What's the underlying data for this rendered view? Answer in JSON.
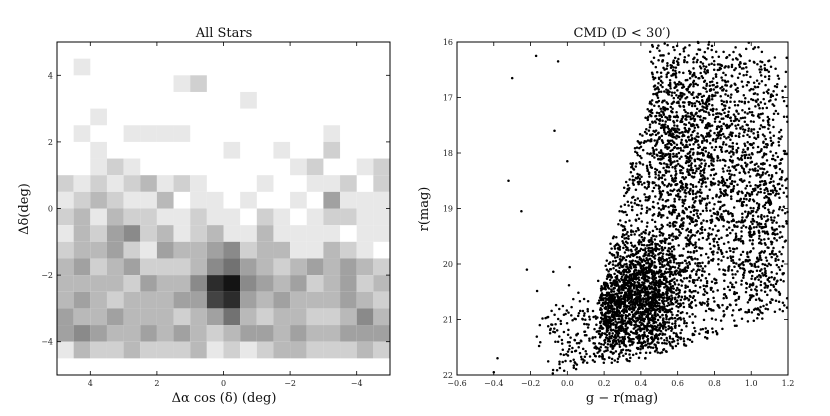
{
  "chart_data": [
    {
      "type": "heatmap",
      "title": "All Stars",
      "xlabel": "Δα cos (δ) (deg)",
      "ylabel": "Δδ(deg)",
      "xlim": [
        5,
        -5
      ],
      "ylim": [
        -5,
        5
      ],
      "x_reversed": true,
      "x_ticks": [
        "4",
        "2",
        "0",
        "−2",
        "−4"
      ],
      "x_tick_values": [
        4,
        2,
        0,
        -2,
        -4
      ],
      "y_ticks": [
        "4",
        "2",
        "0",
        "−2",
        "−4"
      ],
      "y_tick_values": [
        4,
        2,
        0,
        -2,
        -4
      ],
      "bin_size_deg": 0.5,
      "x_bin_start": 5,
      "y_bin_top": 5,
      "density_rows_top_to_bottom": [
        [
          0,
          0,
          0,
          0,
          0,
          0,
          0,
          0,
          0,
          0,
          0,
          0,
          0,
          0,
          0,
          0,
          0,
          0,
          0,
          0
        ],
        [
          0,
          1,
          0,
          0,
          0,
          0,
          0,
          0,
          0,
          0,
          0,
          0,
          0,
          0,
          0,
          0,
          0,
          0,
          0,
          0
        ],
        [
          0,
          0,
          0,
          0,
          0,
          0,
          0,
          1,
          2,
          0,
          0,
          0,
          0,
          0,
          0,
          0,
          0,
          0,
          0,
          0
        ],
        [
          0,
          0,
          0,
          0,
          0,
          0,
          0,
          0,
          0,
          0,
          0,
          1,
          0,
          0,
          0,
          0,
          0,
          0,
          0,
          0
        ],
        [
          0,
          0,
          1,
          0,
          0,
          0,
          0,
          0,
          0,
          0,
          0,
          0,
          0,
          0,
          0,
          0,
          0,
          0,
          0,
          0
        ],
        [
          0,
          1,
          0,
          0,
          1,
          1,
          1,
          1,
          0,
          0,
          0,
          0,
          0,
          0,
          0,
          0,
          1,
          0,
          0,
          0
        ],
        [
          0,
          0,
          1,
          0,
          0,
          0,
          0,
          0,
          0,
          0,
          1,
          0,
          0,
          1,
          0,
          0,
          2,
          0,
          0,
          0
        ],
        [
          0,
          0,
          1,
          2,
          1,
          0,
          0,
          0,
          0,
          0,
          0,
          0,
          0,
          0,
          1,
          2,
          0,
          0,
          1,
          2
        ],
        [
          2,
          1,
          2,
          1,
          2,
          3,
          1,
          2,
          1,
          0,
          0,
          0,
          1,
          0,
          0,
          1,
          1,
          2,
          0,
          2
        ],
        [
          1,
          2,
          3,
          2,
          1,
          1,
          3,
          0,
          1,
          1,
          0,
          1,
          0,
          0,
          1,
          0,
          4,
          1,
          1,
          1
        ],
        [
          2,
          3,
          1,
          3,
          2,
          2,
          1,
          1,
          2,
          1,
          1,
          0,
          2,
          1,
          0,
          1,
          2,
          2,
          1,
          1
        ],
        [
          1,
          3,
          2,
          4,
          5,
          2,
          3,
          1,
          2,
          3,
          1,
          1,
          3,
          1,
          1,
          1,
          1,
          0,
          1,
          1
        ],
        [
          2,
          3,
          3,
          4,
          2,
          1,
          4,
          3,
          3,
          4,
          5,
          2,
          3,
          3,
          1,
          1,
          3,
          2,
          1,
          0
        ],
        [
          3,
          4,
          2,
          3,
          4,
          2,
          2,
          2,
          3,
          5,
          6,
          4,
          3,
          2,
          3,
          4,
          3,
          4,
          3,
          2
        ],
        [
          3,
          3,
          3,
          3,
          2,
          4,
          3,
          3,
          5,
          9,
          10,
          5,
          4,
          3,
          4,
          2,
          3,
          4,
          2,
          3
        ],
        [
          3,
          4,
          3,
          2,
          3,
          3,
          3,
          4,
          4,
          8,
          9,
          4,
          3,
          4,
          3,
          3,
          3,
          4,
          3,
          2
        ],
        [
          4,
          3,
          3,
          4,
          3,
          3,
          3,
          2,
          3,
          4,
          6,
          3,
          2,
          3,
          3,
          2,
          2,
          3,
          5,
          3
        ],
        [
          4,
          5,
          4,
          3,
          3,
          4,
          3,
          4,
          3,
          2,
          3,
          4,
          4,
          3,
          4,
          3,
          3,
          4,
          4,
          4
        ],
        [
          1,
          3,
          2,
          2,
          3,
          2,
          2,
          2,
          3,
          1,
          2,
          1,
          2,
          3,
          3,
          2,
          2,
          2,
          3,
          2
        ]
      ],
      "density_max": 10,
      "grid": false
    },
    {
      "type": "scatter",
      "title": "CMD (D < 30′)",
      "xlabel": "g − r(mag)",
      "ylabel": "r(mag)",
      "xlim": [
        -0.6,
        1.2
      ],
      "ylim": [
        22,
        16
      ],
      "y_reversed": true,
      "x_ticks": [
        "−0.6",
        "−0.4",
        "−0.2",
        "0.0",
        "0.2",
        "0.4",
        "0.6",
        "0.8",
        "1.0",
        "1.2"
      ],
      "x_tick_values": [
        -0.6,
        -0.4,
        -0.2,
        0.0,
        0.2,
        0.4,
        0.6,
        0.8,
        1.0,
        1.2
      ],
      "y_ticks": [
        "16",
        "17",
        "18",
        "19",
        "20",
        "21",
        "22"
      ],
      "y_tick_values": [
        16,
        17,
        18,
        19,
        20,
        21,
        22
      ],
      "isolated_points": [
        {
          "x": -0.17,
          "y": 16.25
        },
        {
          "x": -0.3,
          "y": 16.65
        },
        {
          "x": -0.05,
          "y": 16.35
        },
        {
          "x": -0.07,
          "y": 17.6
        },
        {
          "x": -0.32,
          "y": 18.5
        },
        {
          "x": -0.25,
          "y": 19.05
        },
        {
          "x": 0.0,
          "y": 18.15
        },
        {
          "x": -0.38,
          "y": 21.7
        },
        {
          "x": -0.4,
          "y": 21.95
        },
        {
          "x": -0.05,
          "y": 21.4
        },
        {
          "x": -0.15,
          "y": 21.1
        },
        {
          "x": -0.22,
          "y": 20.1
        }
      ],
      "density_regions": [
        {
          "name": "main-sequence-turnoff",
          "x_center": 0.4,
          "y_center": 20.6,
          "sx": 0.12,
          "sy": 0.55,
          "n": 1500
        },
        {
          "name": "blue-edge",
          "x_center": 0.24,
          "y_center": 20.9,
          "sx": 0.05,
          "sy": 0.45,
          "n": 300
        },
        {
          "name": "field-mid",
          "x_center": 0.62,
          "y_center": 19.2,
          "sx": 0.22,
          "sy": 1.4,
          "n": 1300
        },
        {
          "name": "field-bright",
          "x_center": 0.62,
          "y_center": 17.3,
          "sx": 0.25,
          "sy": 0.9,
          "n": 1000
        },
        {
          "name": "red-side",
          "x_center": 1.05,
          "y_center": 19.5,
          "sx": 0.12,
          "sy": 1.6,
          "n": 700
        },
        {
          "name": "faint-blue",
          "x_center": 0.1,
          "y_center": 21.3,
          "sx": 0.12,
          "sy": 0.45,
          "n": 200
        }
      ],
      "grid": false
    }
  ]
}
